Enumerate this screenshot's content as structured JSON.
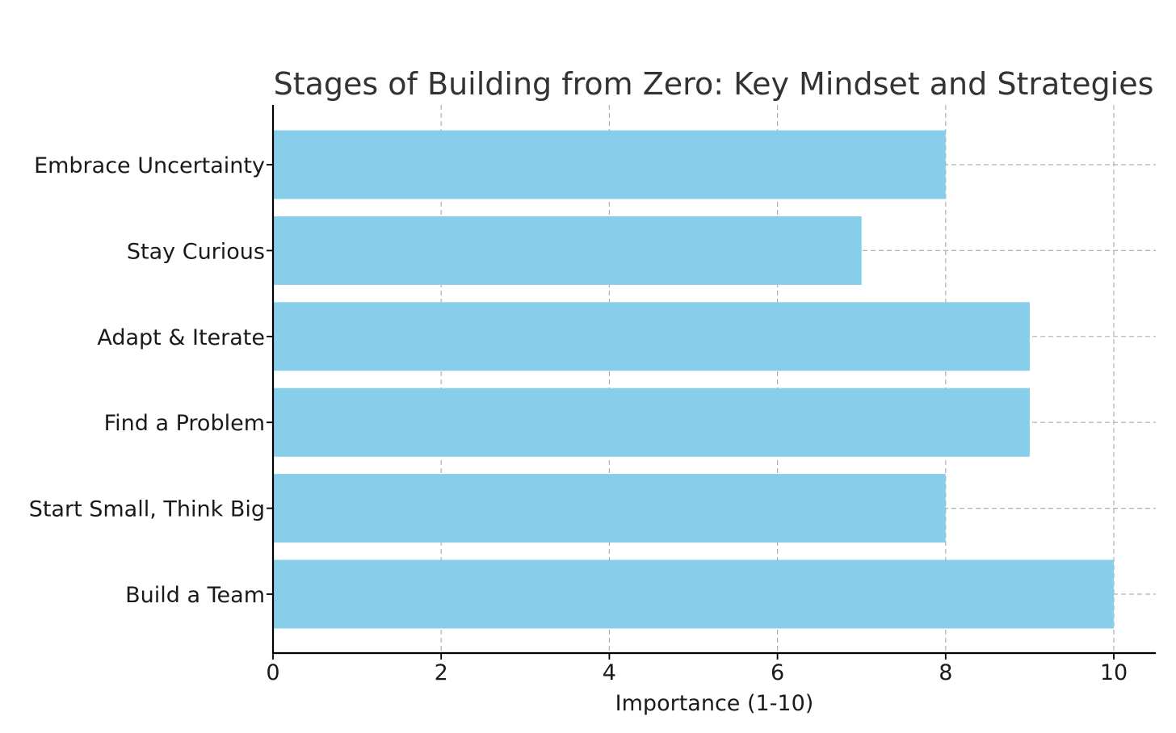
{
  "chart_data": {
    "type": "bar",
    "orientation": "horizontal",
    "title": "Stages of Building from Zero: Key Mindset and Strategies",
    "xlabel": "Importance (1-10)",
    "ylabel": "",
    "categories": [
      "Embrace Uncertainty",
      "Stay Curious",
      "Adapt & Iterate",
      "Find a Problem",
      "Start Small, Think Big",
      "Build a Team"
    ],
    "values": [
      8,
      7,
      9,
      9,
      8,
      10
    ],
    "xlim": [
      0,
      10.5
    ],
    "xticks": [
      "0",
      "2",
      "4",
      "6",
      "8",
      "10"
    ],
    "grid": true,
    "bar_color": "#87CEEB"
  }
}
